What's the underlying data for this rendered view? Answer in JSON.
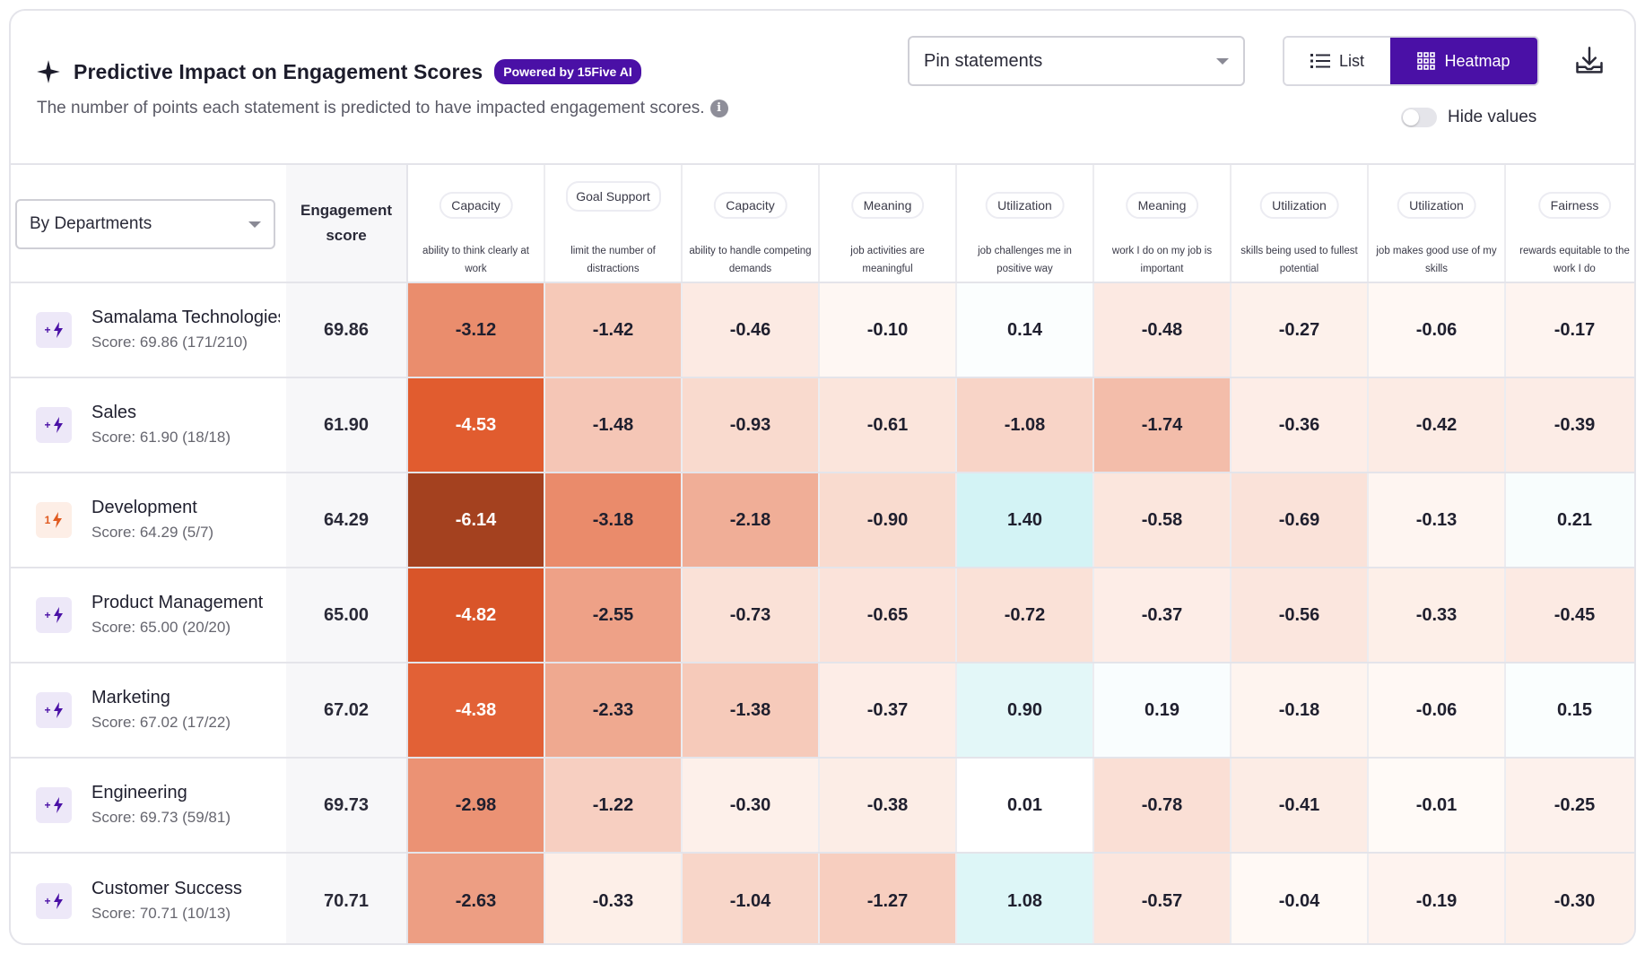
{
  "header": {
    "title": "Predictive Impact on Engagement Scores",
    "ai_badge": "Powered by 15Five AI",
    "subtitle": "The number of points each statement is predicted to have impacted engagement scores.",
    "info_glyph": "i",
    "pin_select_label": "Pin statements",
    "view_list_label": "List",
    "view_heatmap_label": "Heatmap",
    "hide_values_label": "Hide values"
  },
  "grid": {
    "group_by_label": "By Departments",
    "engagement_header_line1": "Engagement",
    "engagement_header_line2": "score",
    "statements": [
      {
        "category": "Capacity",
        "text": "ability to think clearly at work"
      },
      {
        "category": "Goal Support",
        "text": "limit the number of distractions"
      },
      {
        "category": "Capacity",
        "text": "ability to handle competing demands"
      },
      {
        "category": "Meaning",
        "text": "job activities are meaningful"
      },
      {
        "category": "Utilization",
        "text": "job challenges me in positive way"
      },
      {
        "category": "Meaning",
        "text": "work I do on my job is important"
      },
      {
        "category": "Utilization",
        "text": "skills being used to fullest potential"
      },
      {
        "category": "Utilization",
        "text": "job makes good use of my skills"
      },
      {
        "category": "Fairness",
        "text": "rewards equitable to the work I do"
      }
    ],
    "rows": [
      {
        "icon_badge": "+",
        "warn": false,
        "name": "Samalama Technologies",
        "score_text": "Score: 69.86 (171/210)",
        "engagement": "69.86",
        "values": [
          "-3.12",
          "-1.42",
          "-0.46",
          "-0.10",
          "0.14",
          "-0.48",
          "-0.27",
          "-0.06",
          "-0.17"
        ]
      },
      {
        "icon_badge": "+",
        "warn": false,
        "name": "Sales",
        "score_text": "Score: 61.90 (18/18)",
        "engagement": "61.90",
        "values": [
          "-4.53",
          "-1.48",
          "-0.93",
          "-0.61",
          "-1.08",
          "-1.74",
          "-0.36",
          "-0.42",
          "-0.39"
        ]
      },
      {
        "icon_badge": "1",
        "warn": true,
        "name": "Development",
        "score_text": "Score: 64.29 (5/7)",
        "engagement": "64.29",
        "values": [
          "-6.14",
          "-3.18",
          "-2.18",
          "-0.90",
          "1.40",
          "-0.58",
          "-0.69",
          "-0.13",
          "0.21"
        ]
      },
      {
        "icon_badge": "+",
        "warn": false,
        "name": "Product Management",
        "score_text": "Score: 65.00 (20/20)",
        "engagement": "65.00",
        "values": [
          "-4.82",
          "-2.55",
          "-0.73",
          "-0.65",
          "-0.72",
          "-0.37",
          "-0.56",
          "-0.33",
          "-0.45"
        ]
      },
      {
        "icon_badge": "+",
        "warn": false,
        "name": "Marketing",
        "score_text": "Score: 67.02 (17/22)",
        "engagement": "67.02",
        "values": [
          "-4.38",
          "-2.33",
          "-1.38",
          "-0.37",
          "0.90",
          "0.19",
          "-0.18",
          "-0.06",
          "0.15"
        ]
      },
      {
        "icon_badge": "+",
        "warn": false,
        "name": "Engineering",
        "score_text": "Score: 69.73 (59/81)",
        "engagement": "69.73",
        "values": [
          "-2.98",
          "-1.22",
          "-0.30",
          "-0.38",
          "0.01",
          "-0.78",
          "-0.41",
          "-0.01",
          "-0.25"
        ]
      },
      {
        "icon_badge": "+",
        "warn": false,
        "name": "Customer Success",
        "score_text": "Score: 70.71 (10/13)",
        "engagement": "70.71",
        "values": [
          "-2.63",
          "-0.33",
          "-1.04",
          "-1.27",
          "1.08",
          "-0.57",
          "-0.04",
          "-0.19",
          "-0.30"
        ]
      }
    ]
  },
  "colors": {
    "accent": "#4a10a6",
    "negative_strong": "#a2401f",
    "negative": "#e05a2a",
    "positive": "#cff2f4"
  }
}
